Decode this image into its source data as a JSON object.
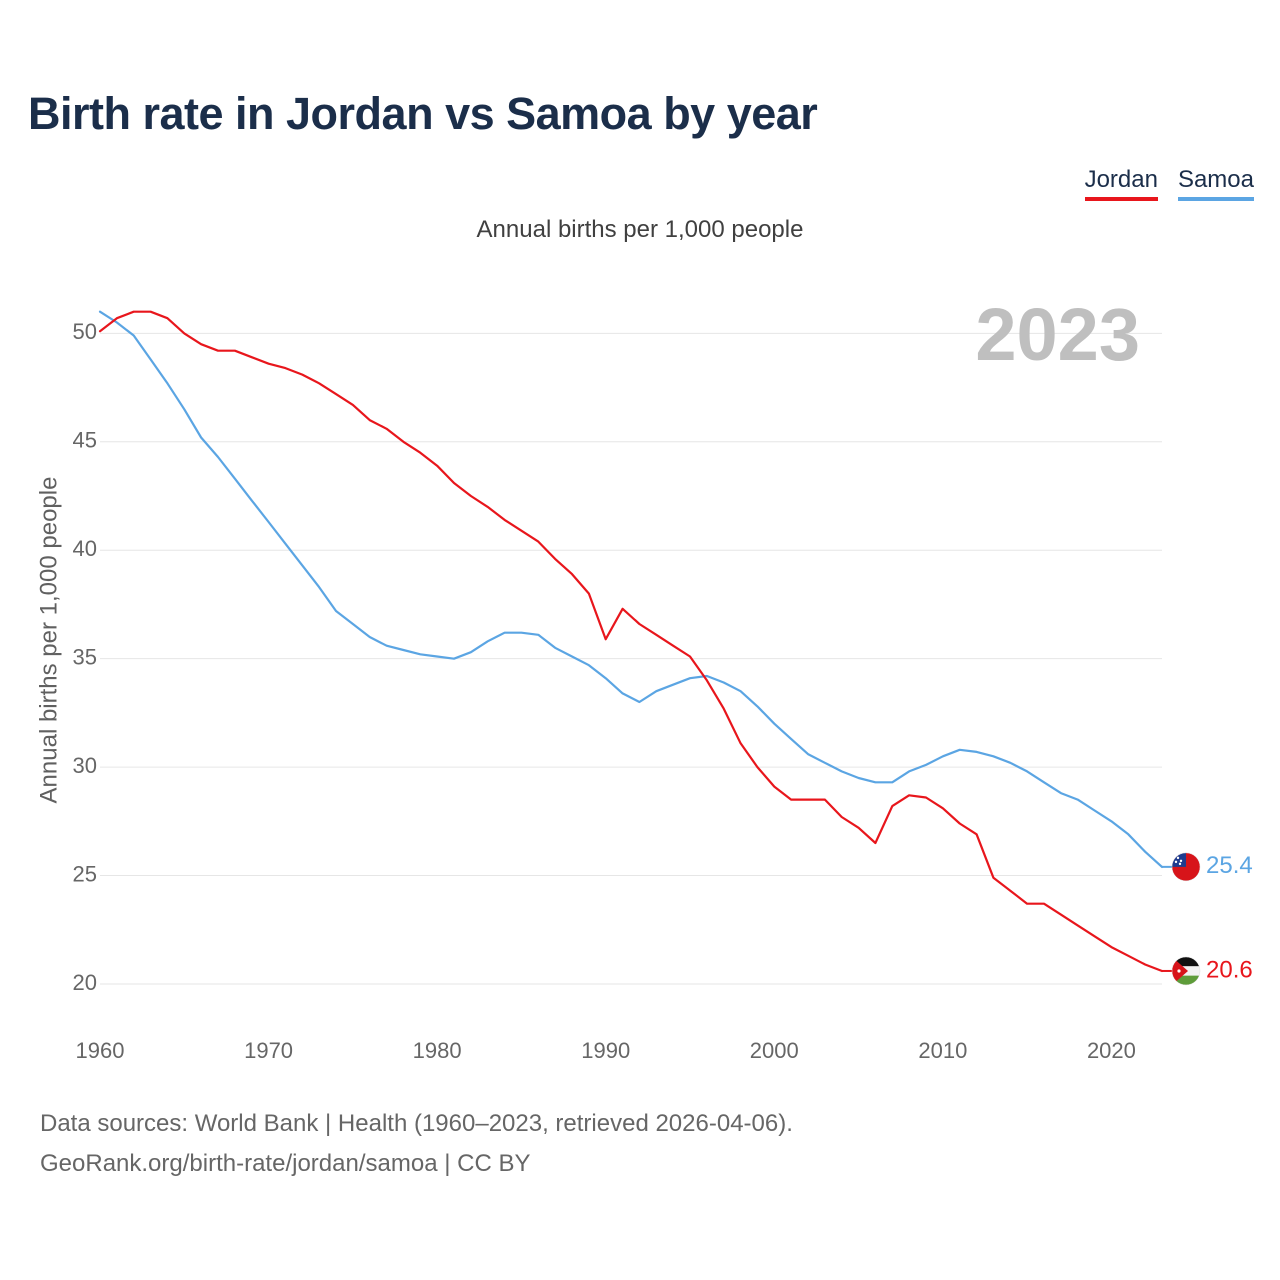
{
  "title": "Birth rate in Jordan vs Samoa by year",
  "subtitle": "Annual births per 1,000 people",
  "year_label": "2023",
  "legend": [
    {
      "name": "Jordan",
      "color": "#e8161c"
    },
    {
      "name": "Samoa",
      "color": "#5ba5e3"
    }
  ],
  "footer": {
    "line1": "Data sources: World Bank | Health (1960–2023, retrieved 2026-04-06).",
    "line2": "GeoRank.org/birth-rate/jordan/samoa | CC BY"
  },
  "chart_data": {
    "type": "line",
    "title": "Birth rate in Jordan vs Samoa by year",
    "ylabel": "Annual births per 1,000 people",
    "xlabel": "",
    "xlim": [
      1960,
      2023
    ],
    "ylim": [
      18.8,
      52
    ],
    "x_ticks": [
      1960,
      1970,
      1980,
      1990,
      2000,
      2010,
      2020
    ],
    "y_ticks": [
      20,
      25,
      30,
      35,
      40,
      45,
      50
    ],
    "grid": true,
    "x": [
      1960,
      1961,
      1962,
      1963,
      1964,
      1965,
      1966,
      1967,
      1968,
      1969,
      1970,
      1971,
      1972,
      1973,
      1974,
      1975,
      1976,
      1977,
      1978,
      1979,
      1980,
      1981,
      1982,
      1983,
      1984,
      1985,
      1986,
      1987,
      1988,
      1989,
      1990,
      1991,
      1992,
      1993,
      1994,
      1995,
      1996,
      1997,
      1998,
      1999,
      2000,
      2001,
      2002,
      2003,
      2004,
      2005,
      2006,
      2007,
      2008,
      2009,
      2010,
      2011,
      2012,
      2013,
      2014,
      2015,
      2016,
      2017,
      2018,
      2019,
      2020,
      2021,
      2022,
      2023
    ],
    "series": [
      {
        "name": "Jordan",
        "color": "#e8161c",
        "end_label": "20.6",
        "values": [
          50.1,
          50.7,
          51.0,
          51.0,
          50.7,
          50.0,
          49.5,
          49.2,
          49.2,
          48.9,
          48.6,
          48.4,
          48.1,
          47.7,
          47.2,
          46.7,
          46.0,
          45.6,
          45.0,
          44.5,
          43.9,
          43.1,
          42.5,
          42.0,
          41.4,
          40.9,
          40.4,
          39.6,
          38.9,
          38.0,
          35.9,
          37.3,
          36.6,
          36.1,
          35.6,
          35.1,
          34.0,
          32.7,
          31.1,
          30.0,
          29.1,
          28.5,
          28.5,
          28.5,
          27.7,
          27.2,
          26.5,
          28.2,
          28.7,
          28.6,
          28.1,
          27.4,
          26.9,
          24.9,
          24.3,
          23.7,
          23.7,
          23.2,
          22.7,
          22.2,
          21.7,
          21.3,
          20.9,
          20.6
        ]
      },
      {
        "name": "Samoa",
        "color": "#5ba5e3",
        "end_label": "25.4",
        "values": [
          51.0,
          50.5,
          49.9,
          48.8,
          47.7,
          46.5,
          45.2,
          44.3,
          43.3,
          42.3,
          41.3,
          40.3,
          39.3,
          38.3,
          37.2,
          36.6,
          36.0,
          35.6,
          35.4,
          35.2,
          35.1,
          35.0,
          35.3,
          35.8,
          36.2,
          36.2,
          36.1,
          35.5,
          35.1,
          34.7,
          34.1,
          33.4,
          33.0,
          33.5,
          33.8,
          34.1,
          34.2,
          33.9,
          33.5,
          32.8,
          32.0,
          31.3,
          30.6,
          30.2,
          29.8,
          29.5,
          29.3,
          29.3,
          29.8,
          30.1,
          30.5,
          30.8,
          30.7,
          30.5,
          30.2,
          29.8,
          29.3,
          28.8,
          28.5,
          28.0,
          27.5,
          26.9,
          26.1,
          25.4
        ]
      }
    ]
  }
}
